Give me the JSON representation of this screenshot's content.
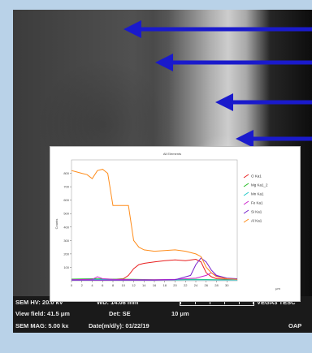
{
  "footer": {
    "hv": "SEM HV: 20.0 kV",
    "wd": "WD: 14.08 mm",
    "brand": "VEGA3 TESC",
    "view_field": "View field: 41.5 μm",
    "det": "Det: SE",
    "scale": "10 μm",
    "mag": "SEM MAG: 5.00 kx",
    "date": "Date(m/d/y): 01/22/19",
    "oap": "OAP"
  },
  "arrows": {
    "count": 4,
    "color": "#1a1acc"
  },
  "chart_data": {
    "type": "line",
    "title": "All Elements",
    "xlabel": "μm",
    "ylabel": "Counts",
    "xlim": [
      0,
      32
    ],
    "ylim": [
      0,
      900
    ],
    "x_ticks": [
      0,
      2,
      4,
      6,
      8,
      10,
      12,
      14,
      16,
      18,
      20,
      22,
      24,
      26,
      28,
      30
    ],
    "y_ticks": [
      100,
      200,
      300,
      400,
      500,
      600,
      700,
      800
    ],
    "series": [
      {
        "name": "O Ka1",
        "color": "#e82020",
        "x": [
          0,
          4,
          8,
          10,
          11,
          12,
          13,
          14,
          16,
          18,
          20,
          22,
          24,
          25,
          26,
          27,
          28,
          30,
          32
        ],
        "values": [
          10,
          10,
          10,
          15,
          40,
          90,
          120,
          130,
          140,
          150,
          155,
          150,
          160,
          140,
          60,
          30,
          15,
          10,
          10
        ]
      },
      {
        "name": "Mg Ka1_2",
        "color": "#22bb22",
        "x": [
          0,
          4,
          8,
          12,
          16,
          20,
          24,
          28,
          32
        ],
        "values": [
          12,
          15,
          12,
          10,
          8,
          8,
          10,
          8,
          8
        ]
      },
      {
        "name": "Mn Ka1",
        "color": "#22c8c8",
        "x": [
          0,
          4,
          8,
          12,
          16,
          20,
          24,
          28,
          32
        ],
        "values": [
          8,
          10,
          8,
          8,
          6,
          6,
          8,
          6,
          6
        ]
      },
      {
        "name": "Fe Ka1",
        "color": "#cc22cc",
        "x": [
          0,
          4,
          5,
          6,
          8,
          12,
          16,
          20,
          24,
          26,
          27,
          28,
          30,
          32
        ],
        "values": [
          8,
          10,
          30,
          15,
          10,
          8,
          8,
          10,
          20,
          40,
          60,
          35,
          15,
          10
        ]
      },
      {
        "name": "Si Ka1",
        "color": "#7722cc",
        "x": [
          0,
          8,
          12,
          16,
          20,
          23,
          24,
          25,
          26,
          27,
          28,
          30,
          32
        ],
        "values": [
          5,
          5,
          5,
          5,
          8,
          40,
          120,
          170,
          140,
          80,
          40,
          20,
          15
        ]
      },
      {
        "name": "Al Ka1",
        "color": "#ff8c1a",
        "x": [
          0,
          1,
          2,
          3,
          4,
          5,
          6,
          7,
          8,
          9,
          10,
          11,
          12,
          13,
          14,
          16,
          18,
          20,
          22,
          24,
          25,
          26,
          27,
          28,
          30,
          32
        ],
        "values": [
          820,
          810,
          800,
          790,
          760,
          820,
          830,
          800,
          560,
          560,
          560,
          560,
          300,
          250,
          230,
          220,
          225,
          230,
          220,
          200,
          180,
          100,
          60,
          30,
          15,
          10
        ]
      }
    ],
    "legend_position": "right"
  }
}
